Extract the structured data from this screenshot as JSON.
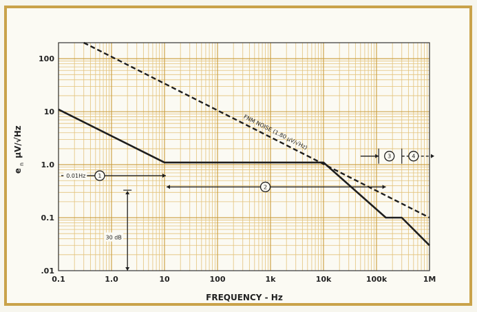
{
  "chart_data": {
    "type": "line",
    "scale": "log-log",
    "xlabel": "FREQUENCY - Hz",
    "ylabel": "e",
    "ylabel_sub": "n",
    "ylabel_unit": "μV/√Hz",
    "xlim": [
      0.1,
      1000000
    ],
    "ylim": [
      0.01,
      200
    ],
    "grid": true,
    "x_tick_labels": [
      {
        "value": 0.1,
        "label": "0.1"
      },
      {
        "value": 1,
        "label": "1.0"
      },
      {
        "value": 10,
        "label": "10"
      },
      {
        "value": 100,
        "label": "100"
      },
      {
        "value": 1000,
        "label": "1k"
      },
      {
        "value": 10000,
        "label": "10k"
      },
      {
        "value": 100000,
        "label": "100k"
      },
      {
        "value": 1000000,
        "label": "1M"
      }
    ],
    "y_tick_labels": [
      {
        "value": 0.01,
        "label": ".01"
      },
      {
        "value": 0.1,
        "label": "0.1"
      },
      {
        "value": 1,
        "label": "1.0"
      },
      {
        "value": 10,
        "label": "10"
      },
      {
        "value": 100,
        "label": "100"
      }
    ],
    "series": [
      {
        "style": "solid",
        "x": [
          0.1,
          10,
          10000,
          150000,
          300000,
          1000000
        ],
        "y": [
          11,
          1.1,
          1.1,
          0.1,
          0.1,
          0.03
        ]
      },
      {
        "name": "FNM NOISE (1.80 µV/√Hz)",
        "style": "dashed",
        "x": [
          0.3,
          1000000
        ],
        "y": [
          200,
          0.1
        ]
      }
    ],
    "annotations": {
      "region_1": {
        "label": "1",
        "text": "0.01Hz",
        "x_from": 0.1,
        "x_to": 10,
        "y": 0.62
      },
      "region_2": {
        "label": "2",
        "x_from": 10,
        "x_to": 150000,
        "y": 0.38
      },
      "region_3": {
        "label": "3",
        "x_from": 50000,
        "x_to": 300000,
        "y": 1.45
      },
      "region_4": {
        "label": "4",
        "x_from": 300000,
        "x_to": 1000000,
        "y": 1.45
      },
      "dynamic_range": {
        "text": "30 dB",
        "x": 2,
        "y_from": 0.01,
        "y_to": 0.33
      }
    }
  }
}
